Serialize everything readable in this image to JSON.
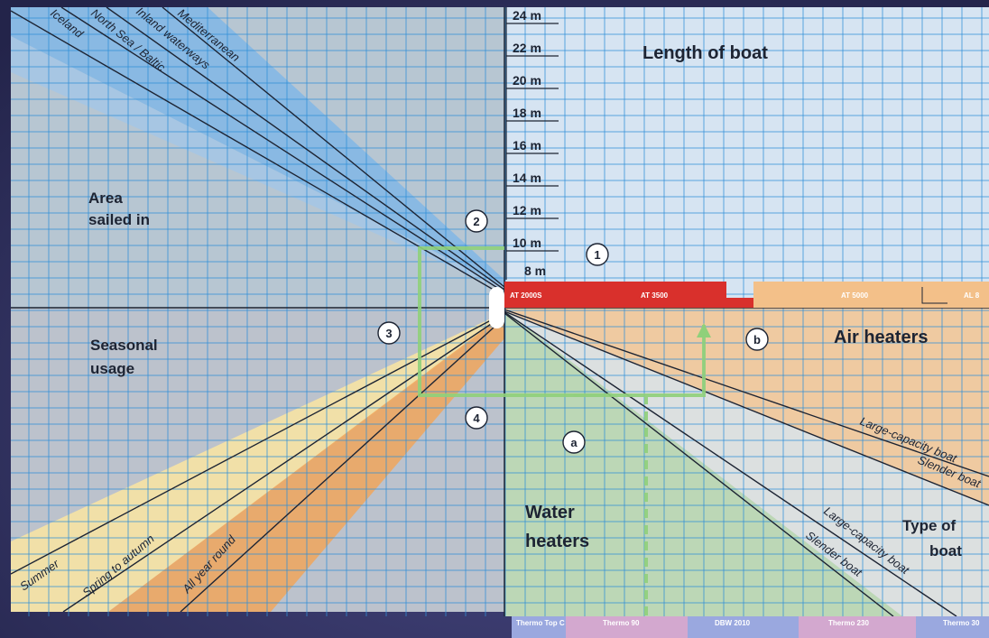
{
  "colors": {
    "background": "#2d2f5a",
    "grid_line": "#2f8fd8",
    "top_left_bg": "#b7c6d2",
    "top_right_bg": "#d6e4f2",
    "bottom_left_bg": "#bcc2cc",
    "bottom_right_bg": "#d2dbe1",
    "blue_band": "#79b4e8",
    "orange_band": "#f0a65c",
    "red_bar": "#d9302c",
    "orange_bar": "#f3c089",
    "green_guide": "#8fd07a",
    "pink_bar": "#d3a8cf",
    "lavender_bar": "#9aa8df"
  },
  "quadrants": {
    "length": {
      "title": "Length of boat"
    },
    "area": {
      "title_line1": "Area",
      "title_line2": "sailed in"
    },
    "seasonal": {
      "title_line1": "Seasonal",
      "title_line2": "usage"
    },
    "air": {
      "title": "Air heaters"
    },
    "water": {
      "title_line1": "Water",
      "title_line2": "heaters"
    },
    "type": {
      "title_line1": "Type of",
      "title_line2": "boat"
    }
  },
  "length_ticks": [
    "24 m",
    "22 m",
    "20 m",
    "18 m",
    "16 m",
    "14 m",
    "12 m",
    "10 m",
    "8 m"
  ],
  "area_lines": [
    "Mediterranean",
    "Inland waterways",
    "North Sea / Baltic",
    "Iceland"
  ],
  "season_lines": [
    "Summer",
    "Spring to autumn",
    "All year round"
  ],
  "air_boat_lines": [
    "Large-capacity boat",
    "Slender boat"
  ],
  "water_boat_lines": [
    "Large-capacity boat",
    "Slender boat"
  ],
  "steps": [
    "1",
    "2",
    "3",
    "4",
    "a",
    "b"
  ],
  "air_heater_bars": [
    "AT 2000S",
    "AT 3500",
    "AT 5000",
    "AL 8"
  ],
  "water_heater_bars": [
    "Thermo Top C",
    "Thermo 90",
    "DBW 2010",
    "Thermo 230",
    "Thermo 30"
  ]
}
